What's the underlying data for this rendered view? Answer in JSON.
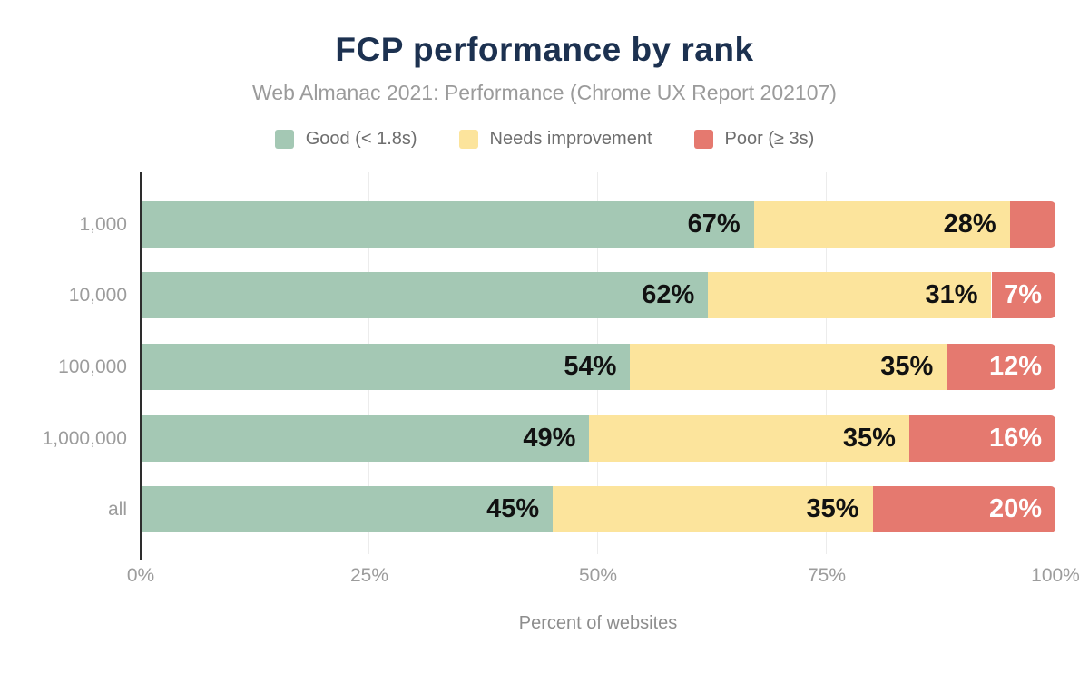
{
  "chart_data": {
    "type": "bar",
    "orientation": "horizontal-stacked",
    "title": "FCP performance by rank",
    "title_color": "#1c3150",
    "subtitle": "Web Almanac 2021: Performance (Chrome UX Report 202107)",
    "xlabel": "Percent of websites",
    "categories": [
      "1,000",
      "10,000",
      "100,000",
      "1,000,000",
      "all"
    ],
    "series": [
      {
        "name": "Good (< 1.8s)",
        "color": "#a4c8b4",
        "label_color": "#111111",
        "values": [
          67,
          62,
          54,
          49,
          45
        ],
        "labels": [
          "67%",
          "62%",
          "54%",
          "49%",
          "45%"
        ]
      },
      {
        "name": "Needs improvement",
        "color": "#fce49c",
        "label_color": "#111111",
        "values": [
          28,
          31,
          35,
          35,
          35
        ],
        "labels": [
          "28%",
          "31%",
          "35%",
          "35%",
          "35%"
        ]
      },
      {
        "name": "Poor (≥ 3s)",
        "color": "#e5796f",
        "label_color": "#ffffff",
        "values": [
          5,
          7,
          12,
          16,
          20
        ],
        "labels": [
          null,
          "7%",
          "12%",
          "16%",
          "20%"
        ]
      }
    ],
    "x_ticks": [
      "0%",
      "25%",
      "50%",
      "75%",
      "100%"
    ],
    "x_tick_values": [
      0,
      25,
      50,
      75,
      100
    ],
    "xlim": [
      0,
      100
    ],
    "grid": "vertical",
    "legend_position": "top"
  }
}
